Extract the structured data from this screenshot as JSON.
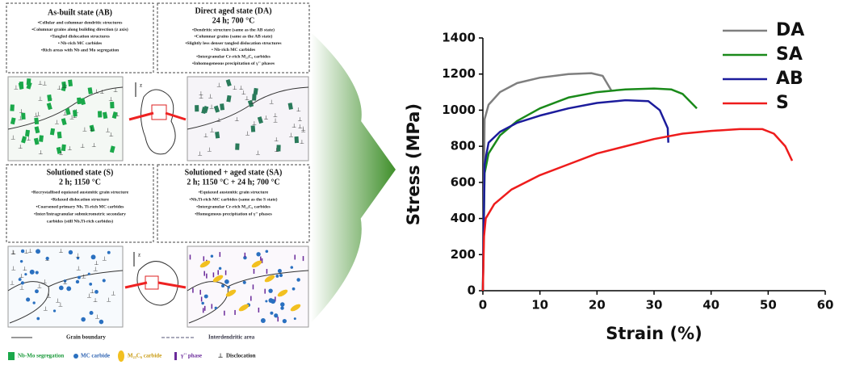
{
  "diagram": {
    "ab": {
      "title": "As-built state (AB)",
      "bullets": [
        "•Cellular and columnar dendritic structures",
        "•Columnar grains along building direction (z axis)",
        "•Tangled dislocation structures",
        "• Nb-rich MC carbides",
        "•Rich areas with Nb and Mo segregation"
      ]
    },
    "da": {
      "title": "Direct aged state (DA)",
      "subtitle": "24 h; 700 °C",
      "bullets": [
        "•Dendritic structure (same as the AB state)",
        "•Columnar grains (same as the AB state)",
        "•Slightly less denser tangled dislocation structures",
        "• Nb-rich MC carbides",
        "•Intergranular Cr-rich M₂₃C₆ carbides",
        "•Inhomogeneous precipitation of γ'' phases"
      ]
    },
    "s": {
      "title": "Solutioned state (S)",
      "subtitle": "2 h; 1150 °C",
      "bullets": [
        "•Recrystallised equiaxed austenitic grain structure",
        "•Relaxed dislocation structure",
        "•Coarsened primary Nb, Ti-rich MC carbides",
        "•Inter/Intragranular submicrometric secondary",
        "carbides (still Nb,Ti-rich carbides)"
      ]
    },
    "sa": {
      "title": "Solutioned + aged state (SA)",
      "subtitle": "2 h; 1150 °C + 24 h; 700 °C",
      "bullets": [
        "•Equiaxed austenitic grain structure",
        "•Nb,Ti-rich MC carbides (same as the S state)",
        "•Intergranular Cr-rich M₂₃C₆ carbides",
        "•Homogenous precipitation of γ'' phases"
      ]
    },
    "axis_label": "z",
    "legend": {
      "grain_boundary": "Grain boundary",
      "interdendritic": "Interdendritic area",
      "nb_mo": "Nb-Mo segregation",
      "mc": "MC carbide",
      "m23c6": "M₂₃C₆ carbide",
      "gamma": "γ'' phase",
      "dislocation": "Disclocation"
    }
  },
  "chart_data": {
    "type": "line",
    "x_label": "Strain (%)",
    "y_label": "Stress (MPa)",
    "xlim": [
      0,
      60
    ],
    "xticks": [
      0,
      10,
      20,
      30,
      40,
      50,
      60
    ],
    "ylim": [
      0,
      1400
    ],
    "yticks": [
      0,
      200,
      400,
      600,
      800,
      1000,
      1200,
      1400
    ],
    "legend": "top-right",
    "series": [
      {
        "name": "DA",
        "color": "#7f7f7f",
        "x": [
          0,
          0.3,
          1,
          3,
          6,
          10,
          15,
          19,
          21,
          22.5
        ],
        "values": [
          0,
          950,
          1030,
          1100,
          1150,
          1180,
          1200,
          1205,
          1190,
          1110
        ]
      },
      {
        "name": "SA",
        "color": "#1a8a1a",
        "x": [
          0,
          0.3,
          1,
          3,
          6,
          10,
          15,
          20,
          25,
          30,
          33,
          35,
          37.5
        ],
        "values": [
          0,
          650,
          760,
          860,
          940,
          1010,
          1070,
          1100,
          1115,
          1120,
          1115,
          1090,
          1010
        ]
      },
      {
        "name": "AB",
        "color": "#1c1c9c",
        "x": [
          0,
          0.3,
          1,
          3,
          6,
          10,
          15,
          20,
          25,
          29,
          31,
          32.4,
          32.5
        ],
        "values": [
          0,
          700,
          820,
          880,
          930,
          970,
          1010,
          1040,
          1055,
          1050,
          1000,
          900,
          820
        ]
      },
      {
        "name": "S",
        "color": "#ee1c1c",
        "x": [
          0,
          0.2,
          0.5,
          2,
          5,
          10,
          15,
          20,
          25,
          30,
          35,
          40,
          45,
          49,
          51,
          53,
          54.2
        ],
        "values": [
          0,
          300,
          400,
          480,
          560,
          640,
          700,
          760,
          800,
          840,
          870,
          885,
          895,
          895,
          870,
          800,
          720
        ]
      }
    ]
  }
}
